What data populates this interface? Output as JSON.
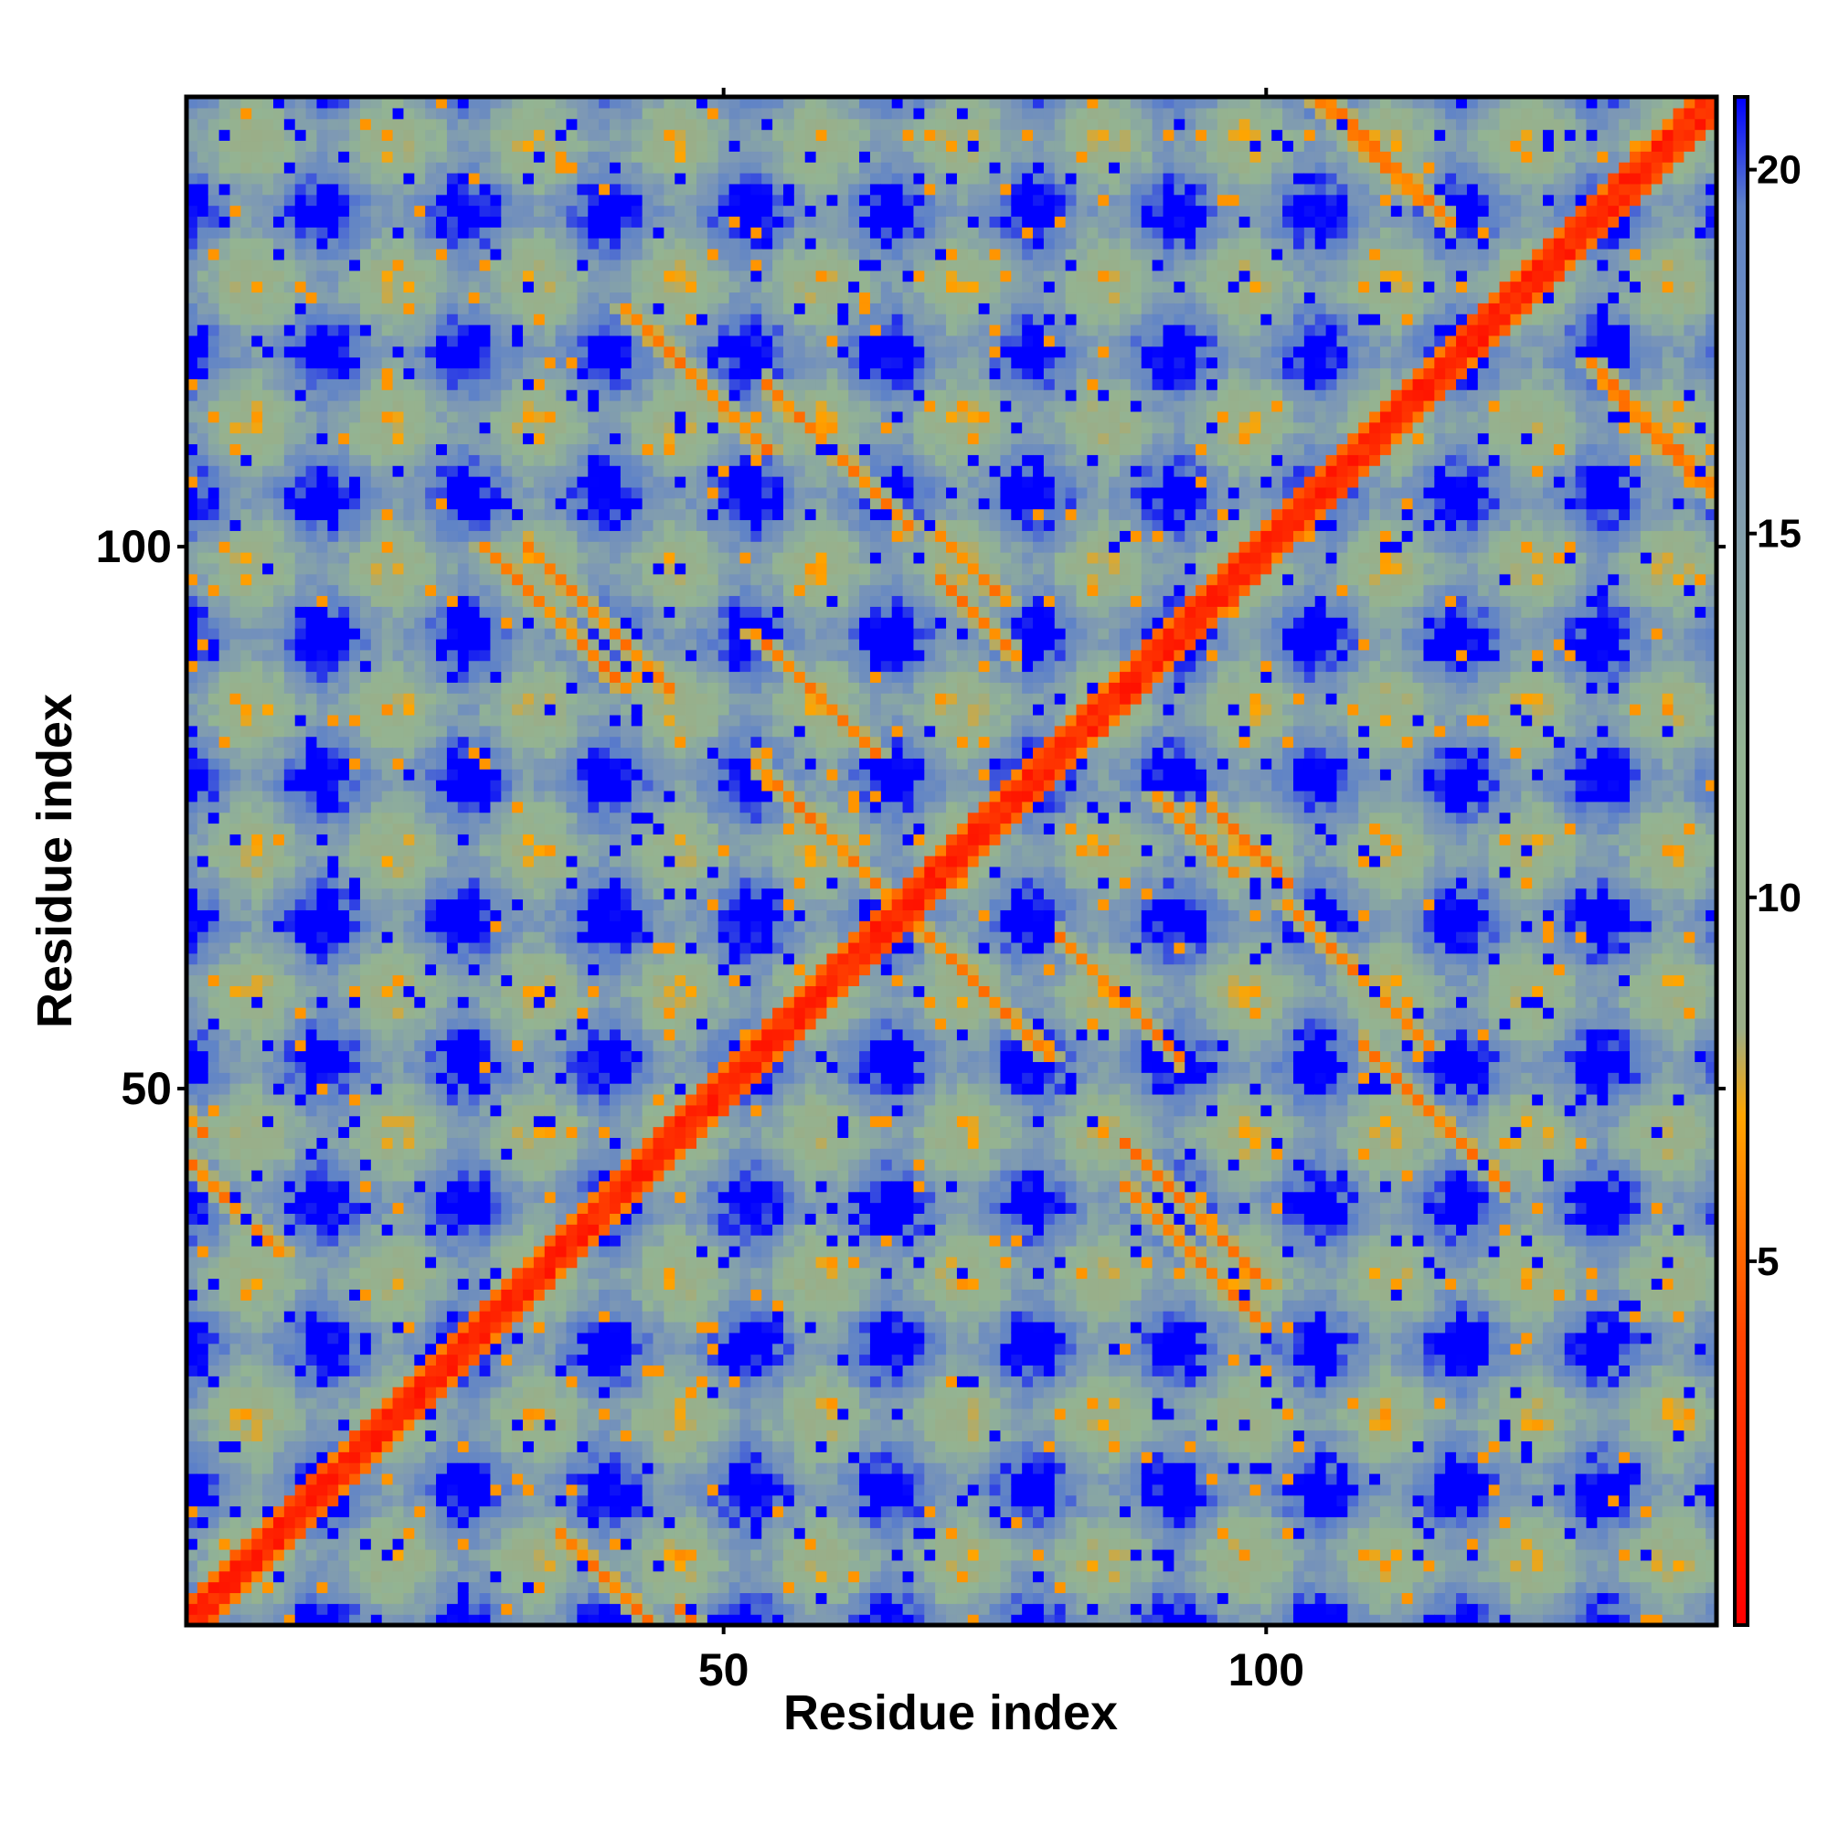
{
  "chart_data": {
    "type": "heatmap",
    "title": "",
    "xlabel": "Residue index",
    "ylabel": "Residue index",
    "n_residues": 141,
    "xlim": [
      1,
      141
    ],
    "ylim": [
      1,
      141
    ],
    "x_ticks": [
      50,
      100
    ],
    "x_tick_labels": [
      "50",
      "100"
    ],
    "y_ticks": [
      50,
      100
    ],
    "y_tick_labels": [
      "50",
      "100"
    ],
    "colorbar": {
      "range": [
        0,
        21
      ],
      "ticks": [
        5,
        10,
        15,
        20
      ],
      "tick_labels": [
        "5",
        "10",
        "15",
        "20"
      ],
      "stops": [
        {
          "value": 0,
          "color": "#ff0000"
        },
        {
          "value": 4,
          "color": "#ff4400"
        },
        {
          "value": 7,
          "color": "#ffa500"
        },
        {
          "value": 8.2,
          "color": "#9aae88"
        },
        {
          "value": 12,
          "color": "#93b493"
        },
        {
          "value": 16,
          "color": "#7d98b5"
        },
        {
          "value": 19.5,
          "color": "#5e82c8"
        },
        {
          "value": 21,
          "color": "#0000ff"
        }
      ]
    },
    "colors": {
      "beyond_cutoff": "#0000ff",
      "near": "#ff0000",
      "mid": "#ffa500",
      "far": "#8fae8f"
    },
    "structure": {
      "diagonal": "main diagonal with values 0–4 Å",
      "parallel_bands": [
        {
          "i_start": 47,
          "j_start": 1,
          "length": 14
        },
        {
          "i_start": 36,
          "j_start": 8,
          "length": 12
        },
        {
          "i_start": 55,
          "j_start": 114,
          "length": 12
        },
        {
          "i_start": 33,
          "j_start": 99,
          "length": 12
        },
        {
          "i_start": 54,
          "j_start": 79,
          "length": 12
        },
        {
          "i_start": 71,
          "j_start": 96,
          "length": 6
        },
        {
          "i_start": 82,
          "j_start": 63,
          "length": 10
        },
        {
          "i_start": 96,
          "j_start": 75,
          "length": 6
        },
        {
          "i_start": 88,
          "j_start": 40,
          "length": 12
        },
        {
          "i_start": 110,
          "j_start": 53,
          "length": 12
        },
        {
          "i_start": 107,
          "j_start": 140,
          "length": 10
        },
        {
          "i_start": 133,
          "j_start": 113,
          "length": 11
        }
      ]
    }
  }
}
